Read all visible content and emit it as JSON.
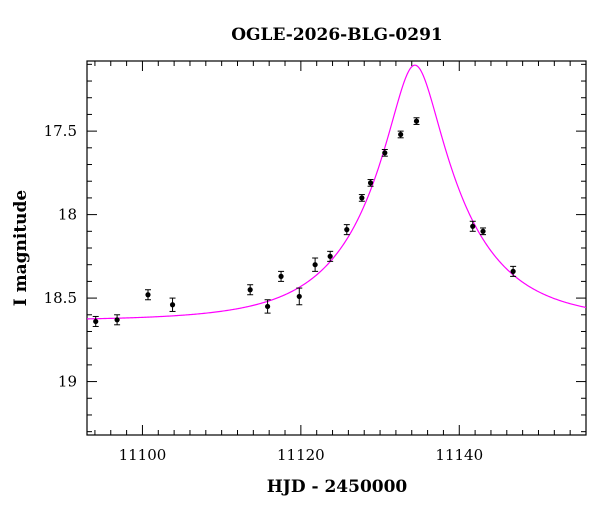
{
  "chart_data": {
    "type": "scatter",
    "title": "OGLE-2026-BLG-0291",
    "xlabel": "HJD - 2450000",
    "ylabel": "I magnitude",
    "xlim": [
      11093,
      11156
    ],
    "ylim": [
      19.32,
      17.08
    ],
    "y_inverted": true,
    "x_ticks": [
      11100,
      11120,
      11140
    ],
    "y_ticks": [
      17.5,
      18,
      18.5,
      19
    ],
    "y_tick_labels": [
      "17.5",
      "18",
      "18.5",
      "19"
    ],
    "x_minor_step": 2,
    "y_minor_step": 0.1,
    "grid": false,
    "marker_color": "#000000",
    "model_color": "#ff00ff",
    "series": [
      {
        "type": "scatter",
        "points": [
          {
            "x": 11094.1,
            "y": 18.64,
            "err": 0.03
          },
          {
            "x": 11096.8,
            "y": 18.63,
            "err": 0.03
          },
          {
            "x": 11100.7,
            "y": 18.48,
            "err": 0.03
          },
          {
            "x": 11103.8,
            "y": 18.54,
            "err": 0.04
          },
          {
            "x": 11113.6,
            "y": 18.45,
            "err": 0.03
          },
          {
            "x": 11115.8,
            "y": 18.55,
            "err": 0.04
          },
          {
            "x": 11117.5,
            "y": 18.37,
            "err": 0.03
          },
          {
            "x": 11119.8,
            "y": 18.49,
            "err": 0.05
          },
          {
            "x": 11121.8,
            "y": 18.3,
            "err": 0.04
          },
          {
            "x": 11123.7,
            "y": 18.25,
            "err": 0.03
          },
          {
            "x": 11125.8,
            "y": 18.09,
            "err": 0.03
          },
          {
            "x": 11127.7,
            "y": 17.9,
            "err": 0.02
          },
          {
            "x": 11128.8,
            "y": 17.81,
            "err": 0.02
          },
          {
            "x": 11130.6,
            "y": 17.63,
            "err": 0.02
          },
          {
            "x": 11132.6,
            "y": 17.52,
            "err": 0.02
          },
          {
            "x": 11134.6,
            "y": 17.44,
            "err": 0.02
          },
          {
            "x": 11141.7,
            "y": 18.07,
            "err": 0.03
          },
          {
            "x": 11143.0,
            "y": 18.1,
            "err": 0.02
          },
          {
            "x": 11146.8,
            "y": 18.34,
            "err": 0.03
          }
        ]
      },
      {
        "type": "line",
        "model": {
          "t0": 11134.4,
          "tE": 11.75,
          "u0": 0.25,
          "I_base": 18.635
        }
      }
    ]
  }
}
